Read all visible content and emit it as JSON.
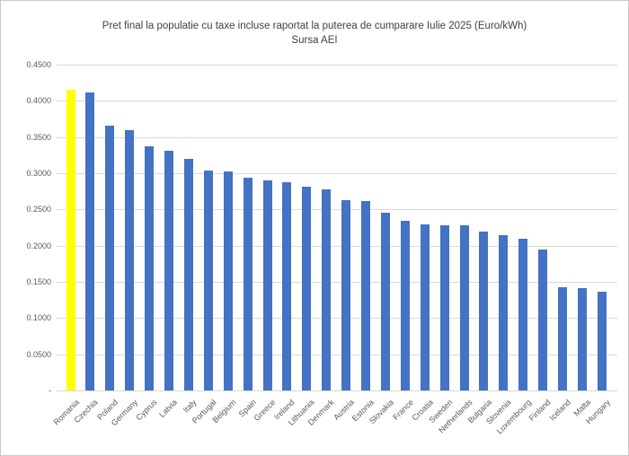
{
  "chart_data": {
    "type": "bar",
    "title": "Pret final la populatie cu taxe incluse raportat la puterea de cumparare Iulie 2025 (Euro/kWh)",
    "subtitle": "Sursa AEI",
    "categories": [
      "Romania",
      "Czechia",
      "Poland",
      "Germany",
      "Cyprus",
      "Latvia",
      "Italy",
      "Portugal",
      "Belgium",
      "Spain",
      "Greece",
      "Ireland",
      "Lithuania",
      "Denmark",
      "Austria",
      "Estonia",
      "Slovakia",
      "France",
      "Croatia",
      "Sweden",
      "Netherlands",
      "Bulgaria",
      "Slovenia",
      "Luxembourg",
      "Finland",
      "Iceland",
      "Malta",
      "Hungary"
    ],
    "values": [
      0.415,
      0.411,
      0.366,
      0.36,
      0.337,
      0.331,
      0.32,
      0.304,
      0.302,
      0.294,
      0.29,
      0.288,
      0.281,
      0.278,
      0.263,
      0.262,
      0.246,
      0.234,
      0.229,
      0.228,
      0.228,
      0.22,
      0.215,
      0.21,
      0.195,
      0.143,
      0.141,
      0.136
    ],
    "xlabel": "",
    "ylabel": "",
    "ylim": [
      0,
      0.45
    ],
    "ytick_interval": 0.05,
    "ytick_labels_bottom_to_top": [
      "-",
      "0.0500",
      "0.1000",
      "0.1500",
      "0.2000",
      "0.2500",
      "0.3000",
      "0.3500",
      "0.4000",
      "0.4500"
    ],
    "grid": true,
    "legend": "none",
    "bar_color": "#4472C4",
    "highlight": {
      "category": "Romania",
      "color": "#FFFF00"
    },
    "gridline_color": "#D9D9D9",
    "axis_label_color": "#595959",
    "title_color": "#404040"
  }
}
